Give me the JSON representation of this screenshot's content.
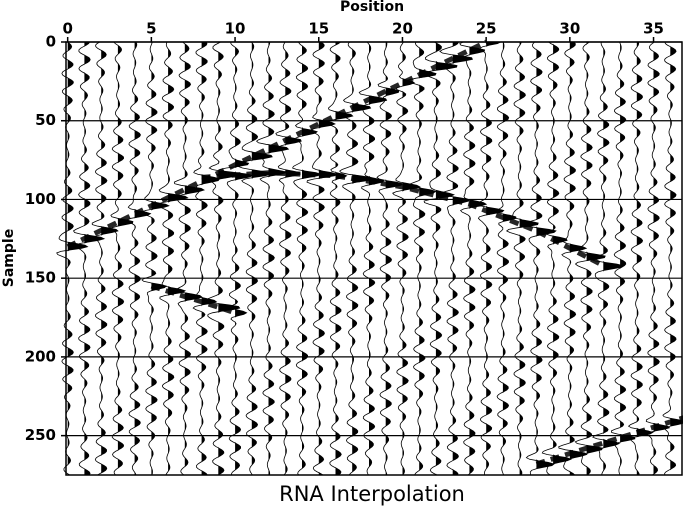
{
  "chart_data": {
    "type": "wiggle",
    "title": "RNA Interpolation",
    "x_label": "Position",
    "y_label": "Sample",
    "xlim": [
      -0.1,
      36.7
    ],
    "ylim": [
      0,
      275
    ],
    "xticks": [
      0,
      5,
      10,
      15,
      20,
      25,
      30,
      35
    ],
    "yticks": [
      0,
      50,
      100,
      150,
      200,
      250
    ],
    "grid": true,
    "color": "#000000",
    "events": [
      {
        "x": [
          0,
          25
        ],
        "values": [
          130,
          0
        ]
      },
      {
        "x": [
          8,
          12,
          16,
          20,
          24,
          28,
          32
        ],
        "values": [
          86,
          83,
          85,
          92,
          103,
          120,
          142
        ]
      },
      {
        "x": [
          5,
          8,
          10
        ],
        "values": [
          155,
          165,
          172
        ]
      },
      {
        "x": [
          28,
          37
        ],
        "values": [
          268,
          238
        ]
      }
    ]
  }
}
